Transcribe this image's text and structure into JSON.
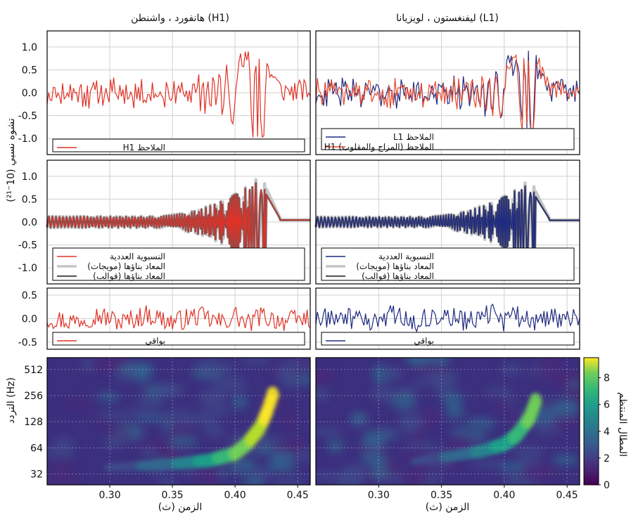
{
  "chart_data": [
    {
      "type": "line",
      "panel": "strain-observed",
      "column_titles": {
        "h1": "هانفورد ، واشنطن (H1)",
        "l1": "ليفنغستون ، لويزيانا (L1)"
      },
      "ylabel": "تشوه نسبي (10⁻²¹)",
      "yticks": [
        "1.0",
        "0.5",
        "0.0",
        "-0.5",
        "-1.0"
      ],
      "ylim": [
        -1.35,
        1.35
      ],
      "xlim": [
        0.25,
        0.46
      ],
      "series": [
        {
          "name": "H1 الملاحظ",
          "column": "h1",
          "color": "#e03226",
          "kind": "observed_h1",
          "x": [
            0.25,
            0.26,
            0.27,
            0.28,
            0.29,
            0.3,
            0.31,
            0.32,
            0.33,
            0.34,
            0.35,
            0.36,
            0.37,
            0.38,
            0.39,
            0.395,
            0.4,
            0.405,
            0.41,
            0.415,
            0.42,
            0.425,
            0.43,
            0.435,
            0.44,
            0.45,
            0.46
          ],
          "y": [
            0.05,
            -0.2,
            0.3,
            -0.25,
            0.15,
            -0.3,
            0.35,
            -0.35,
            0.3,
            -0.4,
            0.4,
            -0.5,
            0.5,
            -0.6,
            0.7,
            -0.7,
            0.95,
            -1.0,
            1.05,
            -0.95,
            0.85,
            -0.7,
            0.5,
            -0.35,
            0.25,
            -0.1,
            0.05
          ]
        },
        {
          "name": "L1 الملاحظ",
          "column": "l1",
          "color": "#1f2a80",
          "kind": "observed_l1",
          "x": [
            0.25,
            0.26,
            0.27,
            0.28,
            0.29,
            0.3,
            0.31,
            0.32,
            0.33,
            0.34,
            0.35,
            0.36,
            0.37,
            0.38,
            0.39,
            0.395,
            0.4,
            0.405,
            0.41,
            0.415,
            0.42,
            0.425,
            0.43,
            0.435,
            0.44,
            0.45,
            0.46
          ],
          "y": [
            0.1,
            -0.15,
            0.2,
            -0.2,
            0.25,
            -0.3,
            0.3,
            -0.35,
            0.4,
            -0.45,
            0.5,
            -0.6,
            0.7,
            -0.8,
            0.95,
            -1.0,
            1.05,
            -1.0,
            1.1,
            -0.9,
            0.7,
            -0.5,
            0.35,
            -0.2,
            0.1,
            -0.05,
            0.0
          ]
        },
        {
          "name": "H1 الملاحظ (المزاح والمقلوب)",
          "column": "l1",
          "color": "#e8462a",
          "kind": "observed_h1_shifted",
          "x": [
            0.25,
            0.26,
            0.27,
            0.28,
            0.29,
            0.3,
            0.31,
            0.32,
            0.33,
            0.34,
            0.35,
            0.36,
            0.37,
            0.38,
            0.39,
            0.395,
            0.4,
            0.405,
            0.41,
            0.415,
            0.42,
            0.425,
            0.43,
            0.435,
            0.44,
            0.45,
            0.46
          ],
          "y": [
            0.15,
            -0.1,
            0.25,
            -0.3,
            0.2,
            -0.25,
            0.35,
            -0.4,
            0.35,
            -0.5,
            0.45,
            -0.55,
            0.65,
            -0.75,
            0.9,
            -1.0,
            1.0,
            -1.05,
            1.0,
            -0.85,
            0.75,
            -0.55,
            0.4,
            -0.25,
            0.2,
            -0.1,
            0.1
          ]
        }
      ]
    },
    {
      "type": "line",
      "panel": "strain-reconstructed",
      "yticks": [
        "1.0",
        "0.5",
        "0.0",
        "-0.5",
        "-1.0"
      ],
      "ylim": [
        -1.35,
        1.35
      ],
      "xlim": [
        0.25,
        0.46
      ],
      "series": [
        {
          "name": "النسبوية العددية",
          "column": "h1",
          "color": "#e03226",
          "kind": "nr",
          "gain": 1.0
        },
        {
          "name": "المعاد بناؤها (مويجات)",
          "column": "h1",
          "color": "#c6c6c6",
          "kind": "wavelet",
          "gain": 1.0
        },
        {
          "name": "المعاد بناؤها (قوالب)",
          "column": "h1",
          "color": "#5a5a62",
          "kind": "template",
          "gain": 1.0
        },
        {
          "name": "النسبوية العددية",
          "column": "l1",
          "color": "#1f2a80",
          "kind": "nr",
          "gain": 0.92
        },
        {
          "name": "المعاد بناؤها (مويجات)",
          "column": "l1",
          "color": "#c6c6c6",
          "kind": "wavelet",
          "gain": 0.92
        },
        {
          "name": "المعاد بناؤها (قوالب)",
          "column": "l1",
          "color": "#5a5a62",
          "kind": "template",
          "gain": 0.92
        }
      ]
    },
    {
      "type": "line",
      "panel": "residual",
      "yticks": [
        "0.5",
        "0.0",
        "-0.5"
      ],
      "ylim": [
        -0.65,
        0.65
      ],
      "xlim": [
        0.25,
        0.46
      ],
      "series": [
        {
          "name": "بواقي",
          "column": "h1",
          "color": "#e03226",
          "kind": "residual_h1",
          "x": [
            0.25,
            0.27,
            0.29,
            0.31,
            0.33,
            0.35,
            0.37,
            0.39,
            0.4,
            0.41,
            0.42,
            0.44,
            0.46
          ],
          "y": [
            0.05,
            -0.2,
            0.25,
            -0.25,
            0.3,
            -0.25,
            0.2,
            -0.3,
            0.25,
            -0.45,
            0.2,
            -0.2,
            0.05
          ]
        },
        {
          "name": "بواقي",
          "column": "l1",
          "color": "#1f2a80",
          "kind": "residual_l1",
          "x": [
            0.25,
            0.27,
            0.29,
            0.31,
            0.33,
            0.35,
            0.37,
            0.39,
            0.4,
            0.41,
            0.42,
            0.44,
            0.46
          ],
          "y": [
            -0.1,
            0.15,
            -0.2,
            0.25,
            -0.2,
            0.3,
            -0.25,
            0.35,
            -0.3,
            0.2,
            -0.15,
            0.1,
            -0.05
          ]
        }
      ]
    },
    {
      "type": "heatmap",
      "panel": "spectrogram",
      "xlabel": "الزمن (ث)",
      "ylabel": "التردد (Hz)",
      "xticks": [
        "0.30",
        "0.35",
        "0.40",
        "0.45"
      ],
      "yticks": [
        "512",
        "256",
        "128",
        "64",
        "32"
      ],
      "xlim": [
        0.25,
        0.46
      ],
      "ylim_hz": [
        24,
        700
      ],
      "colorbar": {
        "label": "المطال المنتظم",
        "ticks": [
          "8",
          "6",
          "4",
          "2",
          "0"
        ],
        "range": [
          0,
          9.5
        ]
      },
      "series": [
        {
          "column": "h1",
          "peak_value": 9.2,
          "track_x": [
            0.3,
            0.33,
            0.36,
            0.38,
            0.4,
            0.41,
            0.42,
            0.425,
            0.43
          ],
          "track_hz": [
            38,
            40,
            43,
            46,
            55,
            72,
            110,
            160,
            260
          ]
        },
        {
          "column": "l1",
          "peak_value": 7.2,
          "track_x": [
            0.33,
            0.36,
            0.38,
            0.4,
            0.41,
            0.42,
            0.425
          ],
          "track_hz": [
            45,
            52,
            58,
            70,
            90,
            140,
            220
          ]
        }
      ]
    }
  ]
}
